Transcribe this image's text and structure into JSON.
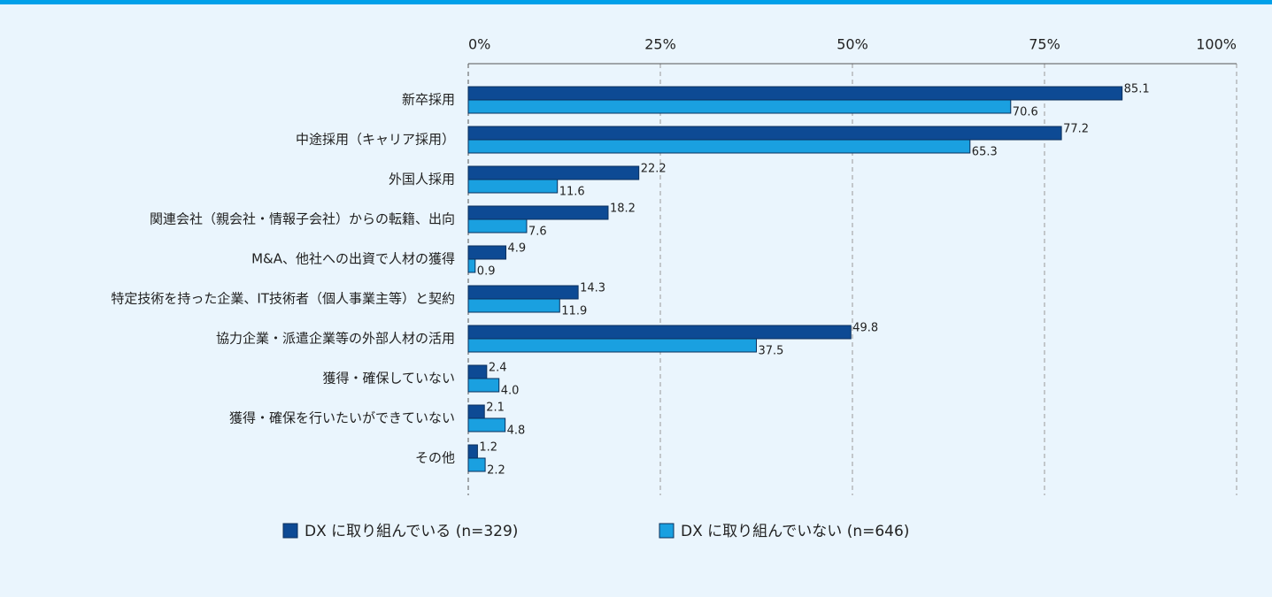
{
  "chart_data": {
    "type": "barh",
    "categories": [
      "新卒採用",
      "中途採用（キャリア採用）",
      "外国人採用",
      "関連会社（親会社・情報子会社）からの転籍、出向",
      "M&A、他社への出資で人材の獲得",
      "特定技術を持った企業、IT技術者（個人事業主等）と契約",
      "協力企業・派遣企業等の外部人材の活用",
      "獲得・確保していない",
      "獲得・確保を行いたいができていない",
      "その他"
    ],
    "series": [
      {
        "name": "DX に取り組んでいる (n=329)",
        "color": "#0d4a94",
        "values": [
          85.1,
          77.2,
          22.2,
          18.2,
          4.9,
          14.3,
          49.8,
          2.4,
          2.1,
          1.2
        ]
      },
      {
        "name": "DX に取り組んでいない (n=646)",
        "color": "#1aa0e0",
        "values": [
          70.6,
          65.3,
          11.6,
          7.6,
          0.9,
          11.9,
          37.5,
          4.0,
          4.8,
          2.2
        ],
        "value_labels": [
          "70.6",
          "65.3",
          "11.6",
          "7.6",
          "0.9",
          "11.9",
          "37.5",
          "4.0",
          "4.8",
          "2.2"
        ]
      }
    ],
    "xlim": [
      0,
      100
    ],
    "xticks": [
      {
        "value": 0,
        "label": "0%"
      },
      {
        "value": 25,
        "label": "25%"
      },
      {
        "value": 50,
        "label": "50%"
      },
      {
        "value": 75,
        "label": "75%"
      },
      {
        "value": 100,
        "label": "100%"
      }
    ],
    "grid": true
  }
}
